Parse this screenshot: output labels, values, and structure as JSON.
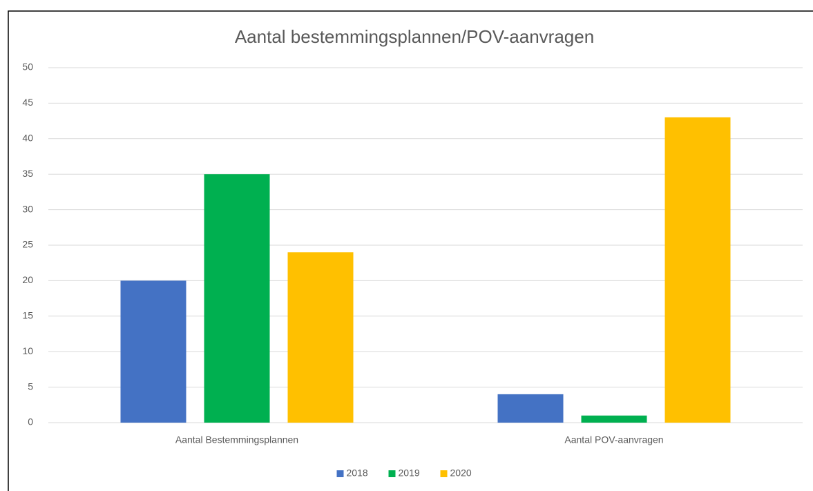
{
  "chart_data": {
    "type": "bar",
    "title": "Aantal bestemmingsplannen/POV-aanvragen",
    "categories": [
      "Aantal Bestemmingsplannen",
      "Aantal POV-aanvragen"
    ],
    "series": [
      {
        "name": "2018",
        "color": "#4472c4",
        "values": [
          20,
          4
        ]
      },
      {
        "name": "2019",
        "color": "#00b050",
        "values": [
          35,
          1
        ]
      },
      {
        "name": "2020",
        "color": "#ffc000",
        "values": [
          24,
          43
        ]
      }
    ],
    "ylim": [
      0,
      50
    ],
    "yticks": [
      0,
      5,
      10,
      15,
      20,
      25,
      30,
      35,
      40,
      45,
      50
    ],
    "grid": true,
    "legend": "bottom"
  }
}
